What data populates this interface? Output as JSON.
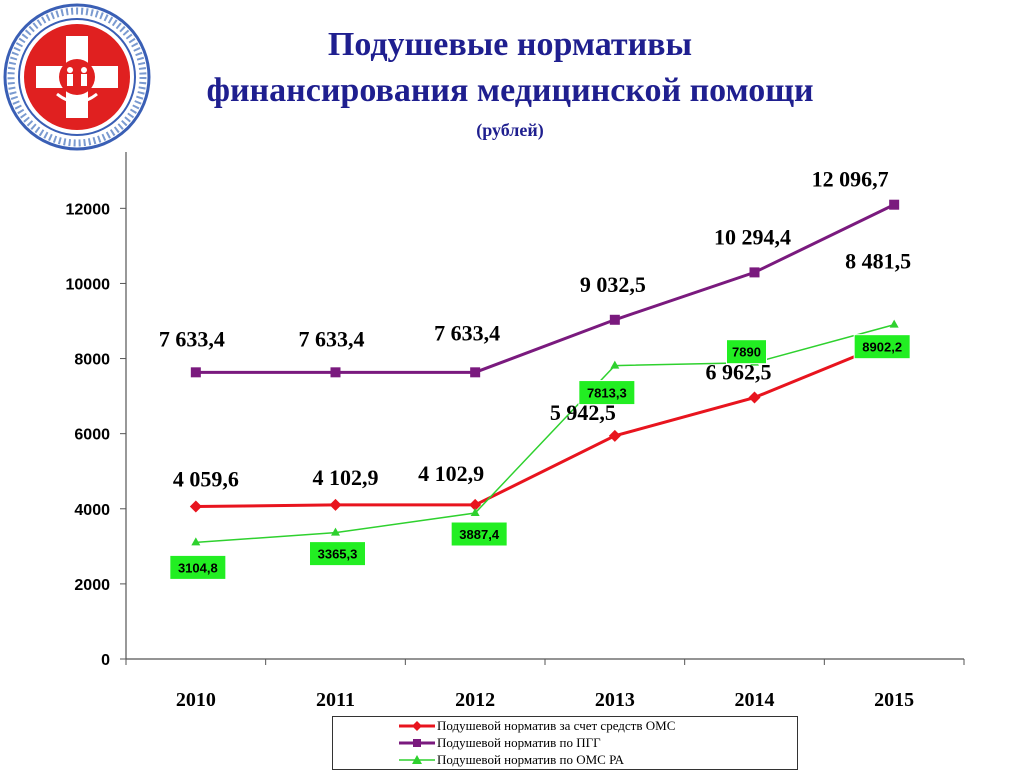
{
  "page": {
    "title_line1": "Подушевые нормативы",
    "title_line2": "финансирования медицинской помощи",
    "subtitle": "(рублей)"
  },
  "logo": {
    "icon": "red-cross-emblem-icon",
    "color_red": "#e02020"
  },
  "chart_data": {
    "type": "line",
    "categories": [
      "2010",
      "2011",
      "2012",
      "2013",
      "2014",
      "2015"
    ],
    "ylim": [
      0,
      13500
    ],
    "yticks": [
      0,
      2000,
      4000,
      6000,
      8000,
      10000,
      12000
    ],
    "ytick_labels": [
      "0",
      "2000",
      "4000",
      "6000",
      "8000",
      "10000",
      "12000"
    ],
    "grid": false,
    "legend_position": "bottom",
    "series": [
      {
        "name": "Подушевой норматив за счет средств ОМС",
        "color": "#e8141e",
        "marker": "diamond",
        "values": [
          4059.6,
          4102.9,
          4102.9,
          5942.5,
          6962.5,
          8481.5
        ],
        "labels": [
          "4 059,6",
          "4 102,9",
          "4 102,9",
          "5 942,5",
          "6 962,5",
          "8 481,5"
        ]
      },
      {
        "name": "Подушевой норматив по ПГГ",
        "color": "#7a1a7e",
        "marker": "square",
        "values": [
          7633.4,
          7633.4,
          7633.4,
          9032.5,
          10294.4,
          12096.7
        ],
        "labels": [
          "7 633,4",
          "7 633,4",
          "7 633,4",
          "9 032,5",
          "10 294,4",
          "12 096,7"
        ]
      },
      {
        "name": "Подушевой норматив по ОМС РА",
        "color": "#2ed12e",
        "marker": "triangle",
        "values": [
          3104.8,
          3365.3,
          3887.4,
          7813.3,
          7890,
          8902.2
        ],
        "labels": [
          "3104,8",
          "3365,3",
          "3887,4",
          "7813,3",
          "7890",
          "8902,2"
        ]
      }
    ]
  }
}
